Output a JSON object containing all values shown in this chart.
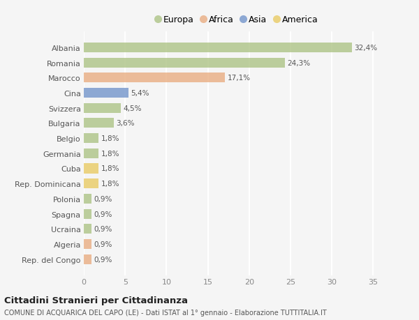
{
  "countries": [
    "Albania",
    "Romania",
    "Marocco",
    "Cina",
    "Svizzera",
    "Bulgaria",
    "Belgio",
    "Germania",
    "Cuba",
    "Rep. Dominicana",
    "Polonia",
    "Spagna",
    "Ucraina",
    "Algeria",
    "Rep. del Congo"
  ],
  "values": [
    32.4,
    24.3,
    17.1,
    5.4,
    4.5,
    3.6,
    1.8,
    1.8,
    1.8,
    1.8,
    0.9,
    0.9,
    0.9,
    0.9,
    0.9
  ],
  "labels": [
    "32,4%",
    "24,3%",
    "17,1%",
    "5,4%",
    "4,5%",
    "3,6%",
    "1,8%",
    "1,8%",
    "1,8%",
    "1,8%",
    "0,9%",
    "0,9%",
    "0,9%",
    "0,9%",
    "0,9%"
  ],
  "colors": [
    "#a8c07e",
    "#a8c07e",
    "#e8a87a",
    "#6a8ec8",
    "#a8c07e",
    "#a8c07e",
    "#a8c07e",
    "#a8c07e",
    "#e8c85a",
    "#e8c85a",
    "#a8c07e",
    "#a8c07e",
    "#a8c07e",
    "#e8a87a",
    "#e8a87a"
  ],
  "legend": [
    {
      "label": "Europa",
      "color": "#a8c07e"
    },
    {
      "label": "Africa",
      "color": "#e8a87a"
    },
    {
      "label": "Asia",
      "color": "#6a8ec8"
    },
    {
      "label": "America",
      "color": "#e8c85a"
    }
  ],
  "xlim": [
    0,
    37
  ],
  "xticks": [
    0,
    5,
    10,
    15,
    20,
    25,
    30,
    35
  ],
  "title": "Cittadini Stranieri per Cittadinanza",
  "subtitle": "COMUNE DI ACQUARICA DEL CAPO (LE) - Dati ISTAT al 1° gennaio - Elaborazione TUTTITALIA.IT",
  "bg_color": "#f5f5f5",
  "grid_color": "#ffffff",
  "bar_alpha": 0.75
}
